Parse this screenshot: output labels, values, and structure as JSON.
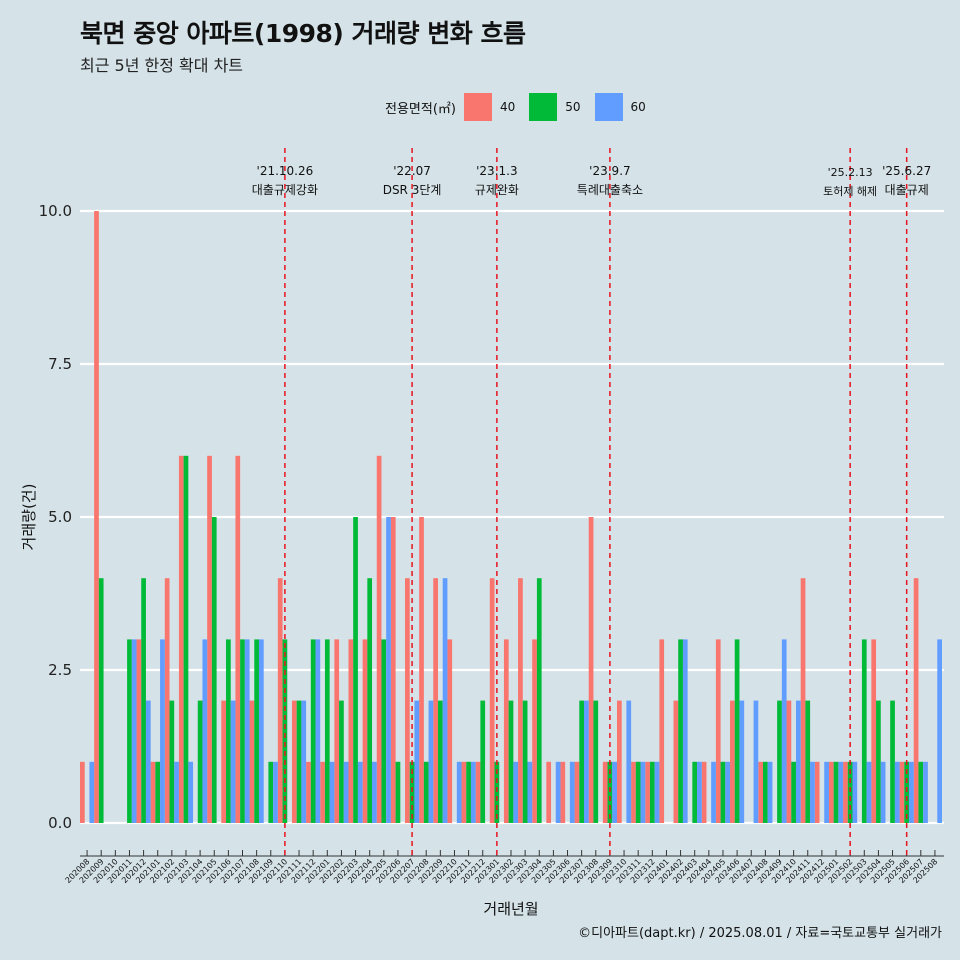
{
  "title": "북면 중앙 아파트(1998) 거래량 변화 흐름",
  "subtitle": "최근 5년 한정 확대 차트",
  "caption": "©디아파트(dapt.kr) / 2025.08.01 / 자료=국토교통부 실거래가",
  "legend_title": "전용면적(㎡)",
  "colors": {
    "40": "#f8766d",
    "50": "#00ba38",
    "60": "#619cff",
    "vline": "#e8141e",
    "grid": "#ffffff"
  },
  "chart_data": {
    "type": "bar",
    "xlabel": "거래년월",
    "ylabel": "거래량(건)",
    "ylim": [
      0,
      10
    ],
    "yticks": [
      "0.0",
      "2.5",
      "5.0",
      "7.5",
      "10.0"
    ],
    "grid": true,
    "legend_position": "top",
    "categories": [
      "202008",
      "202009",
      "202010",
      "202011",
      "202012",
      "202101",
      "202102",
      "202103",
      "202104",
      "202105",
      "202106",
      "202107",
      "202108",
      "202109",
      "202110",
      "202111",
      "202112",
      "202201",
      "202202",
      "202203",
      "202204",
      "202205",
      "202206",
      "202207",
      "202208",
      "202209",
      "202210",
      "202211",
      "202212",
      "202301",
      "202302",
      "202303",
      "202304",
      "202305",
      "202306",
      "202307",
      "202308",
      "202309",
      "202310",
      "202311",
      "202312",
      "202401",
      "202402",
      "202403",
      "202404",
      "202405",
      "202406",
      "202407",
      "202408",
      "202409",
      "202410",
      "202411",
      "202412",
      "202501",
      "202502",
      "202503",
      "202504",
      "202505",
      "202506",
      "202507",
      "202508"
    ],
    "series": [
      {
        "name": "40",
        "values": [
          1,
          10,
          1,
          0,
          3,
          1,
          4,
          6,
          0,
          6,
          2,
          6,
          2,
          0,
          4,
          2,
          1,
          1,
          3,
          3,
          3,
          6,
          5,
          4,
          5,
          4,
          3,
          1,
          1,
          4,
          3,
          4,
          3,
          1,
          1,
          1,
          5,
          1,
          2,
          1,
          1,
          3,
          2,
          0,
          1,
          3,
          2,
          0,
          1,
          0,
          2,
          4,
          1,
          1,
          1,
          0,
          3,
          0,
          1,
          4,
          0
        ],
        "hidden": [
          0,
          0,
          1,
          0,
          0,
          0,
          0,
          0,
          0,
          0,
          0,
          0,
          0,
          0,
          0,
          0,
          0,
          0,
          0,
          0,
          0,
          0,
          0,
          0,
          0,
          0,
          0,
          0,
          0,
          0,
          0,
          0,
          0,
          0,
          0,
          0,
          0,
          0,
          0,
          0,
          0,
          0,
          0,
          0,
          0,
          0,
          0,
          0,
          0,
          0,
          0,
          0,
          0,
          0,
          0,
          0,
          0,
          0,
          0,
          0,
          0
        ]
      },
      {
        "name": "50",
        "values": [
          0,
          4,
          0,
          3,
          4,
          1,
          2,
          6,
          2,
          5,
          3,
          3,
          3,
          1,
          3,
          2,
          3,
          3,
          2,
          5,
          4,
          3,
          1,
          1,
          1,
          2,
          0,
          1,
          2,
          1,
          2,
          2,
          4,
          0,
          0,
          2,
          2,
          1,
          0,
          1,
          1,
          0,
          3,
          1,
          0,
          1,
          3,
          0,
          1,
          2,
          1,
          2,
          0,
          1,
          1,
          3,
          2,
          2,
          1,
          1,
          0
        ]
      },
      {
        "name": "60",
        "values": [
          1,
          0,
          0,
          3,
          2,
          3,
          1,
          1,
          3,
          0,
          2,
          3,
          3,
          1,
          0,
          2,
          3,
          1,
          1,
          1,
          1,
          5,
          0,
          2,
          2,
          4,
          1,
          1,
          0,
          0,
          1,
          1,
          0,
          1,
          1,
          2,
          0,
          1,
          2,
          1,
          1,
          0,
          3,
          1,
          1,
          1,
          2,
          2,
          1,
          3,
          2,
          1,
          1,
          1,
          1,
          1,
          1,
          1,
          1,
          1,
          3
        ]
      }
    ],
    "annotations": [
      {
        "date": "'21.10.26",
        "label": "대출규제강화",
        "month": "202110"
      },
      {
        "date": "'22.07",
        "label": "DSR 3단계",
        "month": "202207"
      },
      {
        "date": "'23.1.3",
        "label": "규제완화",
        "month": "202301"
      },
      {
        "date": "'23.9.7",
        "label": "특례대출축소",
        "month": "202309"
      },
      {
        "date": "'25.2.13",
        "label": "토허제 해제",
        "month": "202502"
      },
      {
        "date": "'25.6.27",
        "label": "대출규제",
        "month": "202506"
      }
    ]
  }
}
